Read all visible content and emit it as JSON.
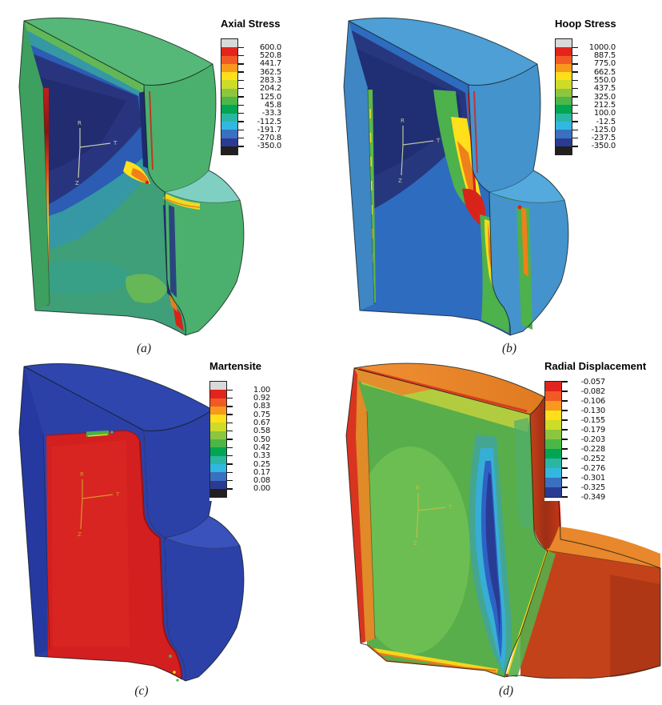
{
  "figure": {
    "background": "#ffffff",
    "palette": {
      "bands": [
        "#e2241d",
        "#f15a24",
        "#f8981d",
        "#ffdf1a",
        "#cddc29",
        "#8cc63f",
        "#4bb749",
        "#00a651",
        "#2bb6a3",
        "#31b8e0",
        "#3a70c0",
        "#2b3b94"
      ],
      "above_max": "#d9d9d9",
      "below_min": "#231f20"
    },
    "triad": {
      "r": "R",
      "t": "T",
      "z": "Z"
    },
    "panels": [
      {
        "id": "a",
        "caption": "(a)",
        "legend": {
          "title": "Axial Stress",
          "caps": true,
          "values": [
            "600.0",
            "520.8",
            "441.7",
            "362.5",
            "283.3",
            "204.2",
            "125.0",
            "45.8",
            "-33.3",
            "-112.5",
            "-191.7",
            "-270.8",
            "-350.0"
          ]
        },
        "colors": {
          "surface": "#4bb06d",
          "top": "#55b878",
          "left": "#3da05f",
          "step": "#7fd0c2",
          "cut": "#3f9f78",
          "hot": "#d42418",
          "cold": "#232f7c"
        }
      },
      {
        "id": "b",
        "caption": "(b)",
        "legend": {
          "title": "Hoop Stress",
          "caps": true,
          "values": [
            "1000.0",
            "887.5",
            "775.0",
            "662.5",
            "550.0",
            "437.5",
            "325.0",
            "212.5",
            "100.0",
            "-12.5",
            "-125.0",
            "-237.5",
            "-350.0"
          ]
        },
        "colors": {
          "surface": "#4493cc",
          "top": "#4d9fd6",
          "left": "#3f86c4",
          "step": "#54aadd",
          "cut": "#2e6cc0",
          "hot": "#d8231a",
          "cold": "#27377e"
        }
      },
      {
        "id": "c",
        "caption": "(c)",
        "legend": {
          "title": "Martensite",
          "caps": true,
          "values": [
            "1.00",
            "0.92",
            "0.83",
            "0.75",
            "0.67",
            "0.58",
            "0.50",
            "0.42",
            "0.33",
            "0.25",
            "0.17",
            "0.08",
            "0.00"
          ]
        },
        "colors": {
          "surface": "#2c41a8",
          "top": "#2e46ae",
          "left": "#2639a0",
          "step": "#3a52bc",
          "cut": "#2c41a8",
          "martensite": "#d31f1f"
        }
      },
      {
        "id": "d",
        "caption": "(d)",
        "legend": {
          "title": "Radial Displacement",
          "caps": false,
          "values": [
            "-0.057",
            "-0.082",
            "-0.106",
            "-0.130",
            "-0.155",
            "-0.179",
            "-0.203",
            "-0.228",
            "-0.252",
            "-0.276",
            "-0.301",
            "-0.325",
            "-0.349"
          ]
        },
        "colors": {
          "surface": "#c4421a",
          "top": "#e8922c",
          "left": "#e08a28",
          "step": "#e8872b",
          "cut": "#58ae4a",
          "band": "#283c94"
        }
      }
    ]
  },
  "chart_data": [
    {
      "type": "heatmap",
      "title": "Axial Stress",
      "legend_values": [
        600.0,
        520.8,
        441.7,
        362.5,
        283.3,
        204.2,
        125.0,
        45.8,
        -33.3,
        -112.5,
        -191.7,
        -270.8,
        -350.0
      ],
      "range": [
        -350.0,
        600.0
      ],
      "out_of_range_caps": true,
      "caption": "(a)",
      "annotation_axes": [
        "R",
        "T",
        "Z"
      ],
      "description": "3D quarter-section contour plot of a stepped coupling; outer surfaces mostly green (~125), dark blue core (-270 to -350) on the cut plane, red/yellow concentrations (400-600) along the inner step edge."
    },
    {
      "type": "heatmap",
      "title": "Hoop Stress",
      "legend_values": [
        1000.0,
        887.5,
        775.0,
        662.5,
        550.0,
        437.5,
        325.0,
        212.5,
        100.0,
        -12.5,
        -125.0,
        -237.5,
        -350.0
      ],
      "range": [
        -350.0,
        1000.0
      ],
      "out_of_range_caps": true,
      "caption": "(b)",
      "annotation_axes": [
        "R",
        "T",
        "Z"
      ],
      "description": "Outer surfaces light blue (~ -12 to -125), navy region (-237 to -350) upper-left of cut plane, vertical green/yellow/red band (325 to 1000) running down the mid cut plane and step."
    },
    {
      "type": "heatmap",
      "title": "Martensite",
      "legend_values": [
        1.0,
        0.92,
        0.83,
        0.75,
        0.67,
        0.58,
        0.5,
        0.42,
        0.33,
        0.25,
        0.17,
        0.08,
        0.0
      ],
      "range": [
        0.0,
        1.0
      ],
      "out_of_range_caps": true,
      "caption": "(c)",
      "annotation_axes": [
        "R",
        "T",
        "Z"
      ],
      "description": "Binary-looking field: coupler sleeve region fully martensitic (red, 1.00), surrounding body untransformed (dark blue, 0.00), small green patch (~0.5) at the sleeve top edge."
    },
    {
      "type": "heatmap",
      "title": "Radial Displacement",
      "legend_values": [
        -0.057,
        -0.082,
        -0.106,
        -0.13,
        -0.155,
        -0.179,
        -0.203,
        -0.228,
        -0.252,
        -0.276,
        -0.301,
        -0.325,
        -0.349
      ],
      "range": [
        -0.349,
        -0.057
      ],
      "out_of_range_caps": false,
      "caption": "(d)",
      "annotation_axes": [
        "R",
        "T",
        "Z"
      ],
      "description": "Outer surfaces orange/red (-0.057 to -0.106), cut plane green (~ -0.2) with vertical navy/blue/cyan trough (-0.30 to -0.349) near the inner step edge."
    }
  ]
}
